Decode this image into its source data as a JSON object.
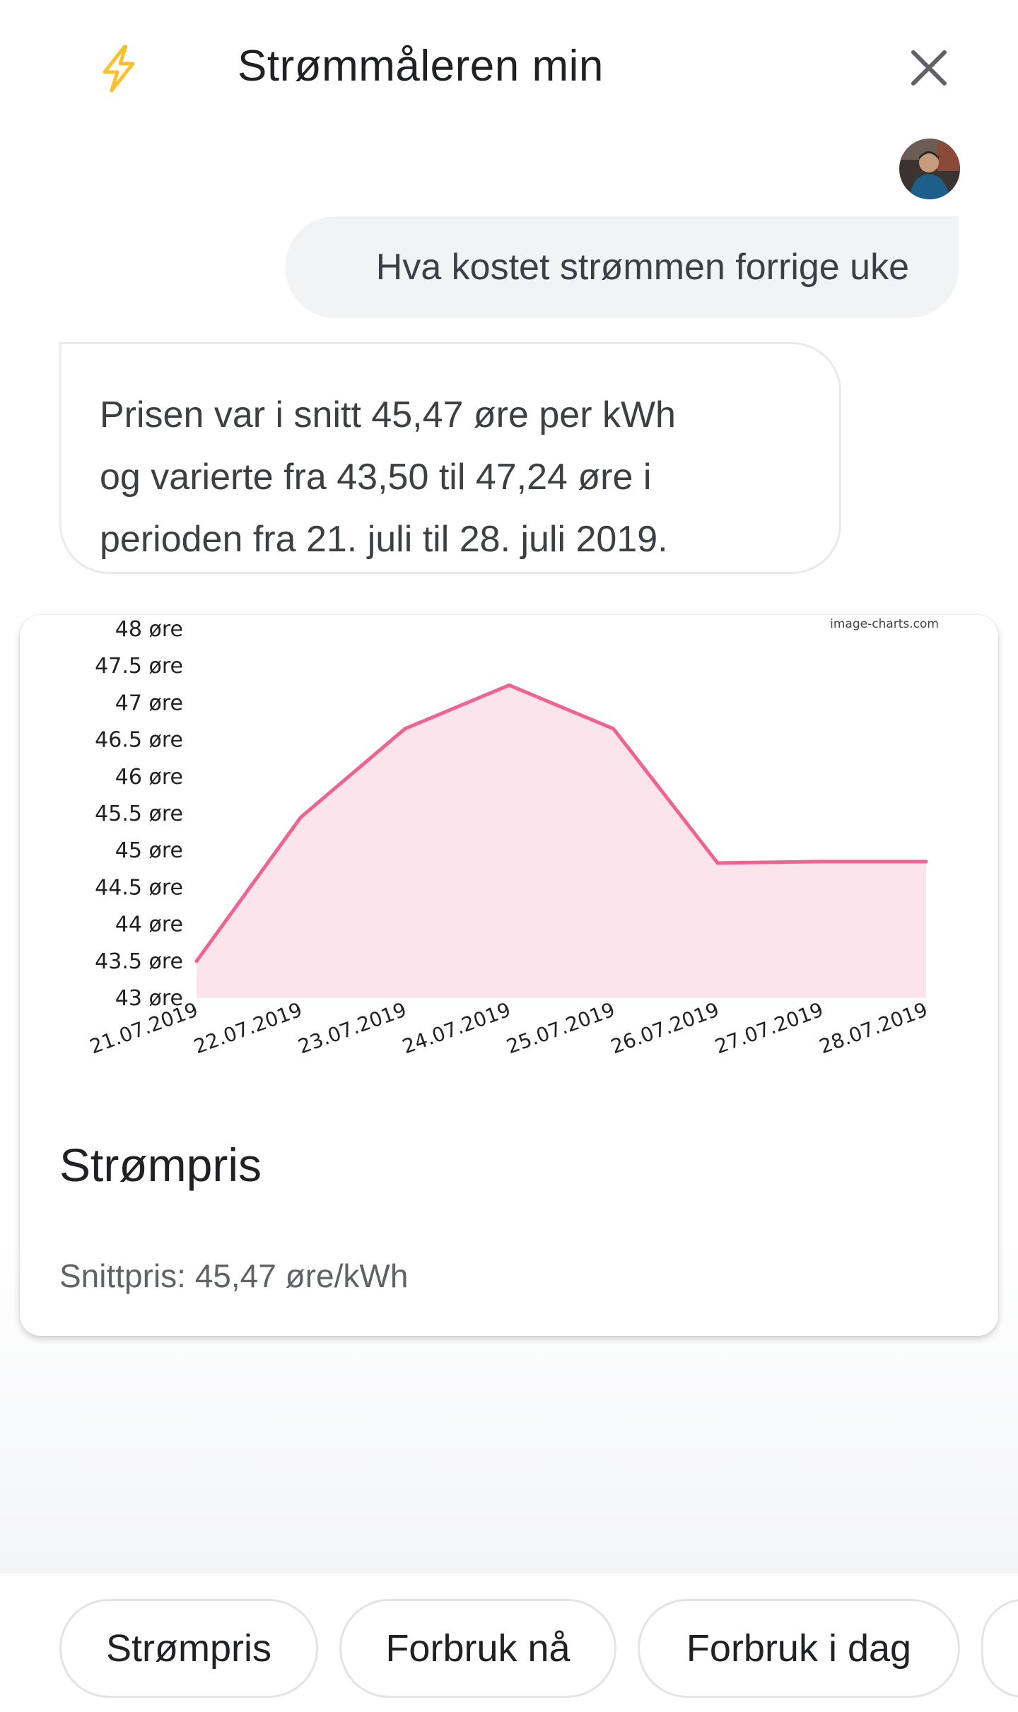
{
  "header": {
    "title": "Strømmåleren min"
  },
  "conversation": {
    "user_message": "Hva kostet strømmen forrige uke",
    "assistant_lines": [
      "Prisen var i snitt 45,47 øre per kWh",
      "og varierte fra 43,50 til 47,24 øre i",
      "perioden fra 21. juli til 28. juli 2019."
    ]
  },
  "card": {
    "title": "Strømpris",
    "subtitle": "Snittpris: 45,47 øre/kWh",
    "watermark": "image-charts.com"
  },
  "chart_data": {
    "type": "area",
    "x": [
      "21.07.2019",
      "22.07.2019",
      "23.07.2019",
      "24.07.2019",
      "25.07.2019",
      "26.07.2019",
      "27.07.2019",
      "28.07.2019"
    ],
    "values": [
      43.5,
      45.45,
      46.65,
      47.24,
      46.65,
      44.83,
      44.85,
      44.85
    ],
    "y_ticks": [
      "43 øre",
      "43.5 øre",
      "44 øre",
      "44.5 øre",
      "45 øre",
      "45.5 øre",
      "46 øre",
      "46.5 øre",
      "47 øre",
      "47.5 øre",
      "48 øre"
    ],
    "ylim": [
      43,
      48
    ],
    "line_color": "#f06292",
    "fill_color": "#fce4ec",
    "grid": false
  },
  "suggestions": [
    "Strømpris",
    "Forbruk nå",
    "Forbruk i dag"
  ],
  "colors": {
    "accent_bolt": "#fbc02d",
    "bubble_user": "#f1f3f4"
  }
}
